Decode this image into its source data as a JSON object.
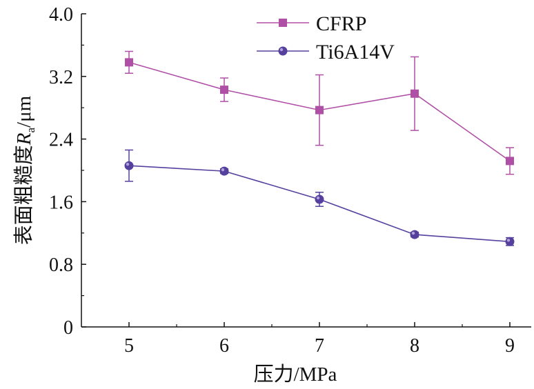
{
  "chart_data": {
    "type": "line",
    "title": "",
    "xlabel": "压力/MPa",
    "ylabel": {
      "prefix": "表面粗糙度",
      "symbol": "R",
      "subscript": "a",
      "suffix": "/μm"
    },
    "x": [
      5,
      6,
      7,
      8,
      9
    ],
    "xticks": [
      "5",
      "6",
      "7",
      "8",
      "9"
    ],
    "xlim": [
      4.5,
      9.25
    ],
    "ylim": [
      0,
      4.0
    ],
    "yticks": [
      "0",
      "0.8",
      "1.6",
      "2.4",
      "3.2",
      "4.0"
    ],
    "ytick_values": [
      0,
      0.8,
      1.6,
      2.4,
      3.2,
      4.0
    ],
    "grid": false,
    "legend_position": "top-center",
    "series": [
      {
        "name": "CFRP",
        "color": "#b04fa6",
        "marker": "square",
        "values": [
          3.38,
          3.03,
          2.77,
          2.98,
          2.12
        ],
        "errors": [
          0.14,
          0.15,
          0.45,
          0.47,
          0.17
        ]
      },
      {
        "name": "Ti6A14V",
        "color": "#55409e",
        "marker": "circle",
        "values": [
          2.06,
          1.99,
          1.63,
          1.18,
          1.09
        ],
        "errors": [
          0.2,
          0.03,
          0.09,
          0.03,
          0.05
        ]
      }
    ]
  }
}
